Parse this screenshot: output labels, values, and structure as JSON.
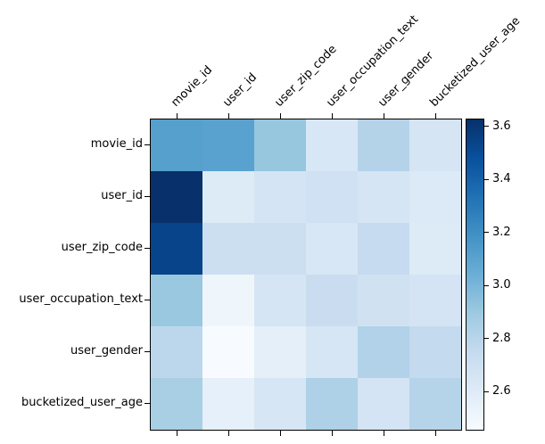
{
  "figure": {
    "background_color": "#ffffff",
    "text_color": "#000000",
    "spine_color": "#000000"
  },
  "chart_data": {
    "type": "heatmap",
    "title": "",
    "xlabel": "",
    "ylabel": "",
    "x_tick_labels": [
      "movie_id",
      "user_id",
      "user_zip_code",
      "user_occupation_text",
      "user_gender",
      "bucketized_user_age"
    ],
    "y_tick_labels": [
      "movie_id",
      "user_id",
      "user_zip_code",
      "user_occupation_text",
      "user_gender",
      "bucketized_user_age"
    ],
    "values": [
      [
        3.12,
        3.11,
        2.92,
        2.64,
        2.82,
        2.66
      ],
      [
        3.63,
        2.61,
        2.67,
        2.7,
        2.66,
        2.62
      ],
      [
        3.54,
        2.72,
        2.72,
        2.64,
        2.75,
        2.61
      ],
      [
        2.91,
        2.51,
        2.66,
        2.73,
        2.69,
        2.67
      ],
      [
        2.79,
        2.46,
        2.57,
        2.65,
        2.83,
        2.76
      ],
      [
        2.86,
        2.56,
        2.65,
        2.84,
        2.67,
        2.81
      ]
    ],
    "vmin": 2.46,
    "vmax": 3.63,
    "grid": false,
    "colormap": "Blues",
    "colormap_stops": [
      {
        "t": 0.0,
        "color": "#f7fbff"
      },
      {
        "t": 0.125,
        "color": "#deebf7"
      },
      {
        "t": 0.25,
        "color": "#c6dbef"
      },
      {
        "t": 0.375,
        "color": "#9ecae1"
      },
      {
        "t": 0.5,
        "color": "#6baed6"
      },
      {
        "t": 0.625,
        "color": "#4292c6"
      },
      {
        "t": 0.75,
        "color": "#2171b5"
      },
      {
        "t": 0.875,
        "color": "#08519c"
      },
      {
        "t": 1.0,
        "color": "#08306b"
      }
    ],
    "colorbar": {
      "position": "right",
      "tick_values": [
        3.6,
        3.4,
        3.2,
        3.0,
        2.8,
        2.6
      ],
      "tick_labels": [
        "3.6",
        "3.4",
        "3.2",
        "3.0",
        "2.8",
        "2.6"
      ]
    }
  }
}
